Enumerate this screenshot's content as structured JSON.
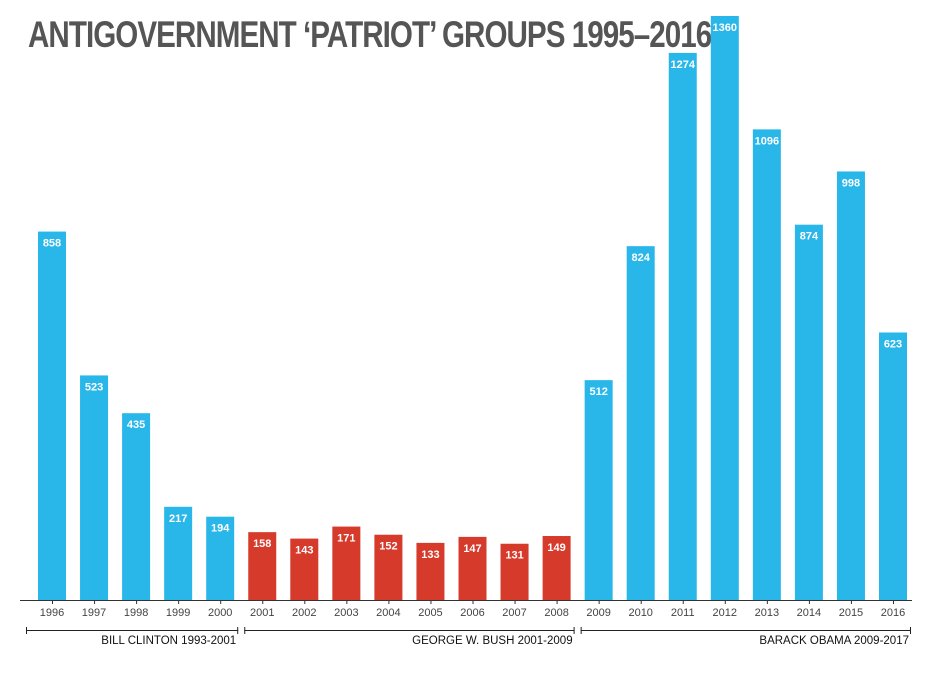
{
  "chart_data": {
    "type": "bar",
    "title": "ANTIGOVERNMENT ‘PATRIOT’ GROUPS 1995–2016",
    "xlabel": "",
    "ylabel": "",
    "ylim": [
      0,
      1360
    ],
    "grid": false,
    "categories": [
      "1996",
      "1997",
      "1998",
      "1999",
      "2000",
      "2001",
      "2002",
      "2003",
      "2004",
      "2005",
      "2006",
      "2007",
      "2008",
      "2009",
      "2010",
      "2011",
      "2012",
      "2013",
      "2014",
      "2015",
      "2016"
    ],
    "values": [
      858,
      523,
      435,
      217,
      194,
      158,
      143,
      171,
      152,
      133,
      147,
      131,
      149,
      512,
      824,
      1274,
      1360,
      1096,
      874,
      998,
      623
    ],
    "colors": {
      "blue": "#29b7ea",
      "red": "#d63a2b",
      "axis": "#333333",
      "title": "#555555"
    },
    "bar_color_key": [
      "blue",
      "blue",
      "blue",
      "blue",
      "blue",
      "red",
      "red",
      "red",
      "red",
      "red",
      "red",
      "red",
      "red",
      "blue",
      "blue",
      "blue",
      "blue",
      "blue",
      "blue",
      "blue",
      "blue"
    ],
    "eras": [
      {
        "label": "BILL CLINTON 1993-2001",
        "first_index": 0,
        "last_index": 4
      },
      {
        "label": "GEORGE W. BUSH 2001-2009",
        "first_index": 5,
        "last_index": 12
      },
      {
        "label": "BARACK OBAMA 2009-2017",
        "first_index": 13,
        "last_index": 20
      }
    ]
  }
}
